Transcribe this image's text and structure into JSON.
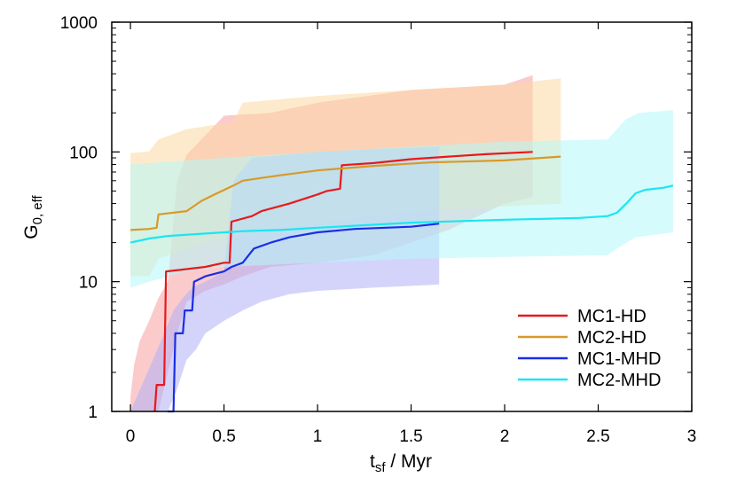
{
  "chart_data": {
    "type": "line",
    "title": "",
    "xlabel": {
      "main": "t",
      "sub": "sf",
      "rest": " / Myr"
    },
    "ylabel": {
      "main": "G",
      "sub": "0, eff"
    },
    "xlim": [
      -0.1,
      3.0
    ],
    "ylim": [
      1,
      1000
    ],
    "yscale": "log",
    "grid": false,
    "legend_position": "lower-right",
    "xticks": [
      0,
      0.5,
      1,
      1.5,
      2,
      2.5,
      3
    ],
    "xtick_labels": [
      "0",
      "0.5",
      "1",
      "1.5",
      "2",
      "2.5",
      "3"
    ],
    "yticks": [
      1,
      10,
      100,
      1000
    ],
    "ytick_labels": [
      "1",
      "10",
      "100",
      "1000"
    ],
    "series": [
      {
        "name": "MC1-HD",
        "color": "#e8191c",
        "band_color": "#f7a0a3",
        "median": [
          [
            0.13,
            1.0
          ],
          [
            0.14,
            1.6
          ],
          [
            0.18,
            1.6
          ],
          [
            0.19,
            12
          ],
          [
            0.3,
            12.5
          ],
          [
            0.4,
            13
          ],
          [
            0.5,
            14
          ],
          [
            0.53,
            14
          ],
          [
            0.54,
            29
          ],
          [
            0.65,
            32
          ],
          [
            0.7,
            35
          ],
          [
            0.85,
            40
          ],
          [
            1.0,
            47
          ],
          [
            1.05,
            50
          ],
          [
            1.12,
            52
          ],
          [
            1.13,
            79
          ],
          [
            1.3,
            82
          ],
          [
            1.5,
            88
          ],
          [
            1.7,
            92
          ],
          [
            1.9,
            96
          ],
          [
            2.15,
            100
          ]
        ],
        "upper": [
          [
            0.0,
            1.3
          ],
          [
            0.02,
            2.3
          ],
          [
            0.05,
            3.5
          ],
          [
            0.1,
            5
          ],
          [
            0.15,
            7.5
          ],
          [
            0.2,
            10
          ],
          [
            0.25,
            60
          ],
          [
            0.3,
            95
          ],
          [
            0.5,
            190
          ],
          [
            0.75,
            200
          ],
          [
            1.0,
            240
          ],
          [
            1.5,
            300
          ],
          [
            2.0,
            330
          ],
          [
            2.15,
            390
          ]
        ],
        "lower": [
          [
            0.0,
            1.0
          ],
          [
            0.15,
            1.0
          ],
          [
            0.2,
            2
          ],
          [
            0.25,
            4
          ],
          [
            0.3,
            7
          ],
          [
            0.4,
            8.5
          ],
          [
            0.5,
            9.5
          ],
          [
            0.6,
            11
          ],
          [
            0.75,
            13
          ],
          [
            1.0,
            14
          ],
          [
            1.3,
            16
          ],
          [
            1.7,
            25
          ],
          [
            2.0,
            40
          ],
          [
            2.15,
            45
          ]
        ]
      },
      {
        "name": "MC2-HD",
        "color": "#d89a2a",
        "band_color": "#fbd9a2",
        "median": [
          [
            0.0,
            25
          ],
          [
            0.1,
            25.5
          ],
          [
            0.14,
            26
          ],
          [
            0.15,
            33
          ],
          [
            0.3,
            35
          ],
          [
            0.38,
            42
          ],
          [
            0.45,
            47
          ],
          [
            0.55,
            55
          ],
          [
            0.6,
            60
          ],
          [
            0.7,
            63
          ],
          [
            0.8,
            66
          ],
          [
            1.0,
            72
          ],
          [
            1.3,
            78
          ],
          [
            1.6,
            83
          ],
          [
            2.0,
            86
          ],
          [
            2.3,
            92
          ]
        ],
        "upper": [
          [
            0.0,
            98
          ],
          [
            0.1,
            101
          ],
          [
            0.15,
            125
          ],
          [
            0.3,
            150
          ],
          [
            0.55,
            170
          ],
          [
            0.6,
            240
          ],
          [
            1.0,
            270
          ],
          [
            1.5,
            300
          ],
          [
            2.0,
            330
          ],
          [
            2.3,
            370
          ]
        ],
        "lower": [
          [
            0.0,
            11
          ],
          [
            0.1,
            11
          ],
          [
            0.15,
            15
          ],
          [
            0.3,
            18
          ],
          [
            0.5,
            22
          ],
          [
            0.8,
            25
          ],
          [
            1.0,
            28
          ],
          [
            1.5,
            35
          ],
          [
            2.0,
            38
          ],
          [
            2.3,
            40
          ]
        ]
      },
      {
        "name": "MC1-MHD",
        "color": "#1a2ee6",
        "band_color": "#b0b0f8",
        "median": [
          [
            0.2,
            1.0
          ],
          [
            0.23,
            1.0
          ],
          [
            0.24,
            4
          ],
          [
            0.28,
            4
          ],
          [
            0.29,
            6
          ],
          [
            0.33,
            6
          ],
          [
            0.34,
            10
          ],
          [
            0.4,
            11
          ],
          [
            0.5,
            12
          ],
          [
            0.54,
            13
          ],
          [
            0.6,
            14
          ],
          [
            0.66,
            18
          ],
          [
            0.75,
            20
          ],
          [
            0.85,
            22
          ],
          [
            1.0,
            24
          ],
          [
            1.2,
            25.5
          ],
          [
            1.5,
            26.5
          ],
          [
            1.65,
            28
          ]
        ],
        "upper": [
          [
            0.12,
            2.5
          ],
          [
            0.18,
            4
          ],
          [
            0.23,
            6
          ],
          [
            0.28,
            7.5
          ],
          [
            0.33,
            9
          ],
          [
            0.4,
            10
          ],
          [
            0.5,
            12
          ],
          [
            0.55,
            60
          ],
          [
            0.65,
            90
          ],
          [
            1.0,
            100
          ],
          [
            1.3,
            105
          ],
          [
            1.65,
            110
          ]
        ],
        "lower": [
          [
            0.0,
            1.0
          ],
          [
            0.2,
            1.0
          ],
          [
            0.25,
            1.5
          ],
          [
            0.3,
            2.5
          ],
          [
            0.35,
            3
          ],
          [
            0.4,
            4
          ],
          [
            0.5,
            5
          ],
          [
            0.6,
            6
          ],
          [
            0.7,
            7
          ],
          [
            0.85,
            8
          ],
          [
            1.0,
            8.5
          ],
          [
            1.3,
            9
          ],
          [
            1.65,
            9.5
          ]
        ]
      },
      {
        "name": "MC2-MHD",
        "color": "#1ae6f2",
        "band_color": "#b5f8f9",
        "median": [
          [
            0.0,
            20
          ],
          [
            0.1,
            21.5
          ],
          [
            0.2,
            22.5
          ],
          [
            0.4,
            23.5
          ],
          [
            0.6,
            24.5
          ],
          [
            0.8,
            25
          ],
          [
            1.0,
            26
          ],
          [
            1.5,
            28.5
          ],
          [
            2.0,
            30
          ],
          [
            2.4,
            31
          ],
          [
            2.55,
            32
          ],
          [
            2.6,
            34
          ],
          [
            2.65,
            40
          ],
          [
            2.7,
            48
          ],
          [
            2.75,
            51
          ],
          [
            2.85,
            53
          ],
          [
            2.9,
            55
          ]
        ],
        "upper": [
          [
            0.0,
            80
          ],
          [
            0.5,
            90
          ],
          [
            1.0,
            100
          ],
          [
            1.5,
            110
          ],
          [
            2.0,
            120
          ],
          [
            2.55,
            125
          ],
          [
            2.6,
            150
          ],
          [
            2.65,
            180
          ],
          [
            2.72,
            200
          ],
          [
            2.9,
            210
          ]
        ],
        "lower": [
          [
            0.0,
            9
          ],
          [
            0.1,
            10
          ],
          [
            0.3,
            12
          ],
          [
            0.5,
            13
          ],
          [
            1.0,
            14
          ],
          [
            1.5,
            15
          ],
          [
            2.0,
            15.5
          ],
          [
            2.55,
            16
          ],
          [
            2.6,
            18
          ],
          [
            2.7,
            22
          ],
          [
            2.9,
            24
          ]
        ]
      }
    ]
  }
}
